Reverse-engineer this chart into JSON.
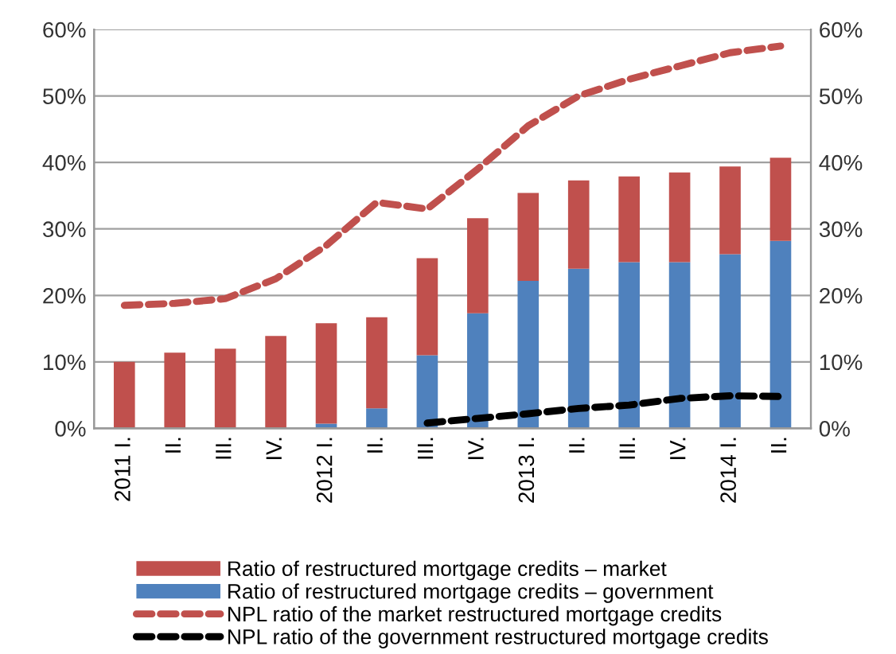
{
  "chart_data": {
    "type": "bar",
    "stacked": true,
    "categories": [
      "2011 I.",
      "II.",
      "III.",
      "IV.",
      "2012 I.",
      "II.",
      "III.",
      "IV.",
      "2013 I.",
      "II.",
      "III.",
      "IV.",
      "2014 I.",
      "II."
    ],
    "series": [
      {
        "name": "Ratio of restructured mortgage credits – government",
        "color": "#4f81bd",
        "values": [
          0,
          0,
          0,
          0,
          0.7,
          3,
          11,
          17.3,
          22.2,
          24,
          25,
          25,
          26.2,
          28.2
        ]
      },
      {
        "name": "Ratio of restructured mortgage credits – market",
        "color": "#c0504d",
        "values": [
          10,
          11.4,
          12,
          13.9,
          15.1,
          13.7,
          14.6,
          14.3,
          13.2,
          13.3,
          12.9,
          13.5,
          13.2,
          12.5
        ]
      },
      {
        "name": "NPL ratio of the market restructured mortgage credits",
        "color": "#c0504d",
        "type": "line",
        "line_style": "dashed",
        "values": [
          18.5,
          18.8,
          19.5,
          22.5,
          27.5,
          34,
          33,
          39,
          45.5,
          50,
          52.5,
          54.5,
          56.5,
          57.5
        ]
      },
      {
        "name": "NPL ratio of the government restructured mortgage credits",
        "color": "#000000",
        "type": "line",
        "line_style": "dashed",
        "values": [
          null,
          null,
          null,
          null,
          null,
          null,
          0.8,
          1.5,
          2.2,
          3,
          3.5,
          4.5,
          4.9,
          4.8
        ]
      }
    ],
    "ylim": [
      0,
      60
    ],
    "yticks": [
      {
        "value": 0,
        "label": "0%"
      },
      {
        "value": 10,
        "label": "10%"
      },
      {
        "value": 20,
        "label": "20%"
      },
      {
        "value": 30,
        "label": "30%"
      },
      {
        "value": 40,
        "label": "40%"
      },
      {
        "value": 50,
        "label": "50%"
      },
      {
        "value": 60,
        "label": "60%"
      }
    ],
    "y2lim": [
      0,
      60
    ],
    "y2ticks": [
      {
        "value": 0,
        "label": "0%"
      },
      {
        "value": 10,
        "label": "10%"
      },
      {
        "value": 20,
        "label": "20%"
      },
      {
        "value": 30,
        "label": "30%"
      },
      {
        "value": 40,
        "label": "40%"
      },
      {
        "value": 50,
        "label": "50%"
      },
      {
        "value": 60,
        "label": "60%"
      }
    ],
    "grid": "y",
    "legend": "bottom",
    "marker": "none"
  }
}
